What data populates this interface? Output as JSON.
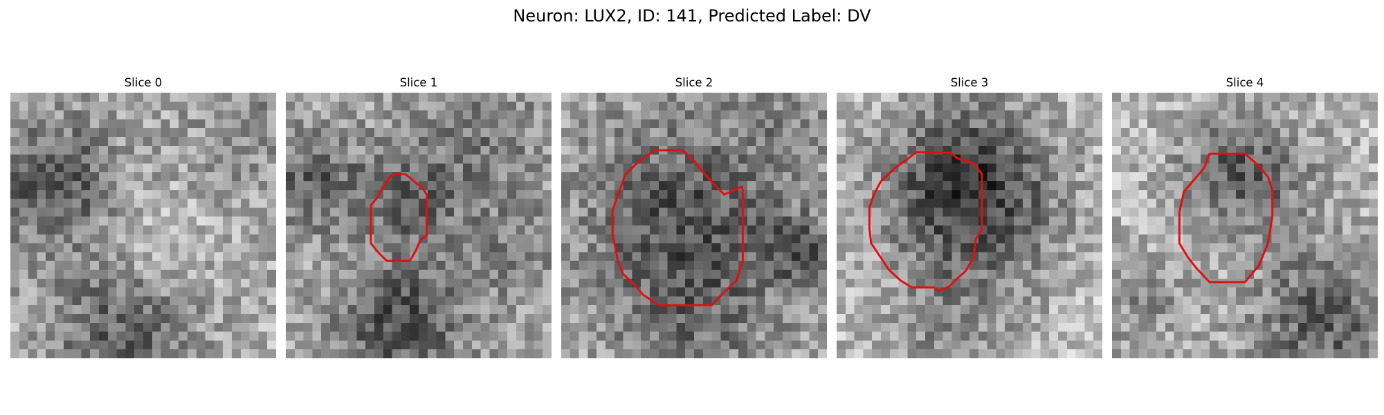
{
  "figure": {
    "title": "Neuron: LUX2, ID: 141, Predicted Label: DV",
    "contour_color": "#e01010",
    "colormap": "grayscale"
  },
  "panels": [
    {
      "title": "Slice 0",
      "has_contour": false,
      "description_words": "noisy grayscale microscopy patch"
    },
    {
      "title": "Slice 1",
      "has_contour": true,
      "description_words": "small outlined cell"
    },
    {
      "title": "Slice 2",
      "has_contour": true,
      "description_words": "large outlined cell"
    },
    {
      "title": "Slice 3",
      "has_contour": true,
      "description_words": "dark outlined cell"
    },
    {
      "title": "Slice 4",
      "has_contour": true,
      "description_words": "outlined cell"
    }
  ]
}
